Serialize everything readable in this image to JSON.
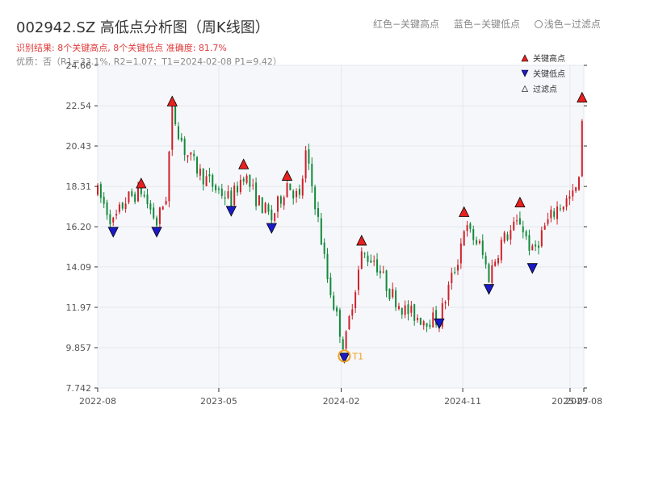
{
  "title": "002942.SZ 高低点分析图（周K线图）",
  "subtitle": "识别结果: 8个关键高点, 8个关键低点  准确度: 81.7%",
  "quality": "优质：否（R1=33.1%, R2=1.07；T1=2024-02-08 P1=9.42）",
  "top_legend": {
    "red": "红色−关键高点",
    "blue": "蓝色−关键低点",
    "light": "浅色−过滤点"
  },
  "colors": {
    "up": "#d0202a",
    "down": "#138a3c",
    "high_marker": "#e8201f",
    "low_marker": "#1a1ac8",
    "t1": "#f0a020",
    "plot_bg": "#f5f7fa",
    "grid": "#e4e7ec"
  },
  "chart_data": {
    "type": "candlestick",
    "ylim": [
      7.742,
      24.66
    ],
    "y_ticks": [
      "24.66",
      "22.54",
      "20.43",
      "18.31",
      "16.20",
      "14.09",
      "11.97",
      "9.857",
      "7.742"
    ],
    "x_ticks": [
      "2022-08",
      "2023-05",
      "2024-02",
      "2024-11",
      "2025-07",
      "2025-08"
    ],
    "x_tick_values": [
      "2022-08-01",
      "2023-05-01",
      "2024-02-01",
      "2024-11-01",
      "2025-07-01",
      "2025-08-01"
    ],
    "x_range": [
      "2022-08-01",
      "2025-08-01"
    ],
    "legend": [
      {
        "name": "关键高点",
        "symbol": "up-triangle"
      },
      {
        "name": "关键低点",
        "symbol": "down-triangle"
      },
      {
        "name": "过滤点",
        "symbol": "up-triangle-hollow"
      }
    ],
    "annotation": {
      "label": "T1",
      "date": "2024-02-08",
      "value": 9.42
    },
    "key_highs": [
      {
        "date": "2022-11-07",
        "value": 18.4
      },
      {
        "date": "2023-01-16",
        "value": 22.7
      },
      {
        "date": "2023-06-26",
        "value": 19.4
      },
      {
        "date": "2023-10-02",
        "value": 18.8
      },
      {
        "date": "2024-03-18",
        "value": 15.4
      },
      {
        "date": "2024-11-04",
        "value": 16.9
      },
      {
        "date": "2025-03-10",
        "value": 17.4
      },
      {
        "date": "2025-07-28",
        "value": 22.9
      }
    ],
    "key_lows": [
      {
        "date": "2022-09-05",
        "value": 16.0
      },
      {
        "date": "2022-12-12",
        "value": 16.0
      },
      {
        "date": "2023-05-29",
        "value": 17.1
      },
      {
        "date": "2023-08-28",
        "value": 16.2
      },
      {
        "date": "2024-02-08",
        "value": 9.4
      },
      {
        "date": "2024-09-09",
        "value": 11.2
      },
      {
        "date": "2024-12-30",
        "value": 13.0
      },
      {
        "date": "2025-04-07",
        "value": 14.1
      }
    ],
    "anchors": [
      [
        "2022-08-01",
        18.0
      ],
      [
        "2022-09-05",
        16.4
      ],
      [
        "2022-10-03",
        17.6
      ],
      [
        "2022-11-07",
        18.1
      ],
      [
        "2022-12-12",
        16.4
      ],
      [
        "2023-01-02",
        17.8
      ],
      [
        "2023-01-16",
        22.3
      ],
      [
        "2023-02-13",
        20.2
      ],
      [
        "2023-03-20",
        19.0
      ],
      [
        "2023-04-24",
        18.2
      ],
      [
        "2023-05-29",
        17.6
      ],
      [
        "2023-06-26",
        19.0
      ],
      [
        "2023-07-24",
        17.7
      ],
      [
        "2023-08-28",
        16.6
      ],
      [
        "2023-10-02",
        18.5
      ],
      [
        "2023-10-30",
        17.6
      ],
      [
        "2023-11-13",
        20.0
      ],
      [
        "2023-12-04",
        17.5
      ],
      [
        "2024-01-01",
        13.5
      ],
      [
        "2024-02-08",
        9.8
      ],
      [
        "2024-02-26",
        12.3
      ],
      [
        "2024-03-18",
        14.7
      ],
      [
        "2024-04-15",
        14.5
      ],
      [
        "2024-05-20",
        12.8
      ],
      [
        "2024-06-24",
        11.8
      ],
      [
        "2024-07-29",
        11.4
      ],
      [
        "2024-09-09",
        11.3
      ],
      [
        "2024-09-30",
        13.0
      ],
      [
        "2024-10-21",
        14.5
      ],
      [
        "2024-11-04",
        16.2
      ],
      [
        "2024-12-09",
        15.2
      ],
      [
        "2024-12-30",
        13.6
      ],
      [
        "2025-01-27",
        15.4
      ],
      [
        "2025-03-10",
        16.5
      ],
      [
        "2025-04-07",
        14.8
      ],
      [
        "2025-05-05",
        16.2
      ],
      [
        "2025-06-02",
        17.2
      ],
      [
        "2025-07-07",
        17.8
      ],
      [
        "2025-07-21",
        18.5
      ],
      [
        "2025-07-28",
        22.0
      ],
      [
        "2025-08-01",
        18.3
      ]
    ]
  }
}
